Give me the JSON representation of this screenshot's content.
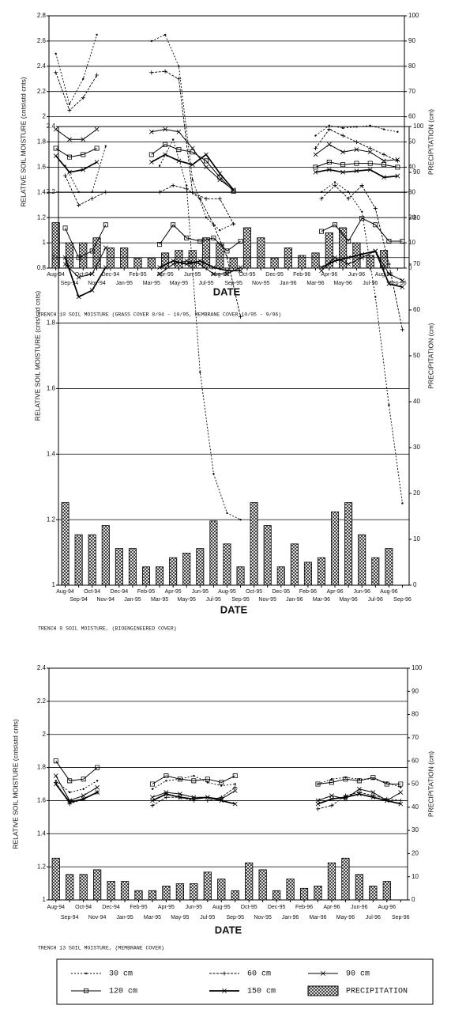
{
  "chart_data": [
    {
      "type": "bar_line",
      "caption": "TRENCH 10 SOIL MOISTURE (GRASS COVER 8/94 - 10/95, MEMBRANE COVER 10/95 - 9/96)",
      "x_label": "DATE",
      "y_label": "RELATIVE SOIL MOISTURE (cnts\\std cnts)",
      "y2_label": "PRECIPITATION (cm)",
      "categories": [
        "Aug-94",
        "Sep-94",
        "Oct-94",
        "Nov-94",
        "Dec-94",
        "Jan-95",
        "Feb-95",
        "Mar-95",
        "Apr-95",
        "May-95",
        "Jun-95",
        "Jul-95",
        "Aug-95",
        "Sep-95",
        "Oct-95",
        "Nov-95",
        "Dec-95",
        "Jan-96",
        "Feb-96",
        "Mar-96",
        "Apr-96",
        "May-96",
        "Jun-96",
        "Jul-96",
        "Aug-96",
        "Sep-96"
      ],
      "ylim": [
        0.8,
        2.8
      ],
      "yticks": [
        0.8,
        1,
        1.2,
        1.4,
        1.6,
        1.8,
        2,
        2.2,
        2.4,
        2.6,
        2.8
      ],
      "y2lim": [
        0,
        100
      ],
      "y2ticks": [
        0,
        10,
        20,
        30,
        40,
        50,
        60,
        70,
        80,
        90,
        100
      ],
      "grid": true,
      "series": [
        {
          "name": "30 cm",
          "color": "#000",
          "values": [
            2.5,
            2.1,
            2.3,
            2.65,
            null,
            null,
            null,
            2.6,
            2.65,
            2.4,
            1.5,
            1.2,
            1.1,
            1.15,
            null,
            null,
            null,
            null,
            null,
            1.85,
            1.93,
            1.91,
            1.92,
            1.93,
            1.9,
            1.88
          ]
        },
        {
          "name": "60 cm",
          "color": "#000",
          "values": [
            2.35,
            2.05,
            2.15,
            2.33,
            null,
            null,
            null,
            2.35,
            2.36,
            2.3,
            1.4,
            1.35,
            1.35,
            1.15,
            null,
            null,
            null,
            null,
            null,
            1.75,
            1.9,
            1.85,
            1.8,
            1.75,
            1.7,
            1.65
          ]
        },
        {
          "name": "90 cm",
          "color": "#000",
          "values": [
            1.9,
            1.82,
            1.82,
            1.9,
            null,
            null,
            null,
            1.88,
            1.9,
            1.88,
            1.75,
            1.6,
            1.5,
            1.42,
            null,
            null,
            null,
            null,
            null,
            1.7,
            1.78,
            1.72,
            1.74,
            1.72,
            1.65,
            1.66
          ]
        },
        {
          "name": "120 cm",
          "color": "#000",
          "values": [
            1.75,
            1.68,
            1.7,
            1.75,
            null,
            null,
            null,
            1.7,
            1.78,
            1.74,
            1.72,
            1.65,
            1.52,
            1.41,
            null,
            null,
            null,
            null,
            null,
            1.6,
            1.64,
            1.62,
            1.63,
            1.63,
            1.62,
            1.6
          ]
        },
        {
          "name": "150 cm",
          "color": "#000",
          "values": [
            1.69,
            1.56,
            1.58,
            1.64,
            null,
            null,
            null,
            1.64,
            1.7,
            1.65,
            1.62,
            1.7,
            1.55,
            1.42,
            null,
            null,
            null,
            null,
            null,
            1.56,
            1.58,
            1.56,
            1.57,
            1.58,
            1.52,
            1.53
          ]
        },
        {
          "name": "PRECIPITATION",
          "color": "#000",
          "axis": "y2",
          "values": [
            18,
            10,
            10,
            12,
            8,
            8,
            4,
            4,
            6,
            7,
            7,
            12,
            10,
            4,
            16,
            12,
            4,
            8,
            5,
            6,
            14,
            16,
            10,
            5,
            7,
            null
          ]
        }
      ]
    },
    {
      "type": "bar_line",
      "caption": "TRENCH 9 SOIL MOISTURE, (BIOENGINEERED COVER)",
      "x_label": "DATE",
      "y_label": "RELATIVE SOIL MOISTURE (cnts\\std cnts)",
      "y2_label": "PRECIPITATION (cm)",
      "categories": [
        "Aug-94",
        "Sep-94",
        "Oct-94",
        "Nov-94",
        "Dec-94",
        "Jan-95",
        "Feb-95",
        "Mar-95",
        "Apr-95",
        "May-95",
        "Jun-95",
        "Jul-95",
        "Aug-95",
        "Sep-95",
        "Oct-95",
        "Nov-95",
        "Dec-95",
        "Jan-96",
        "Feb-96",
        "Mar-96",
        "Apr-96",
        "May-96",
        "Jun-96",
        "Jul-96",
        "Aug-96",
        "Sep-96"
      ],
      "ylim": [
        1,
        2.4
      ],
      "yticks": [
        1,
        1.2,
        1.4,
        1.6,
        1.8,
        2,
        2.2,
        2.4
      ],
      "y2lim": [
        0,
        100
      ],
      "y2ticks": [
        0,
        10,
        20,
        30,
        40,
        50,
        60,
        70,
        80,
        90,
        100
      ],
      "grid": true,
      "series": [
        {
          "name": "30 cm",
          "color": "#000",
          "values": [
            2.28,
            2.2,
            2.2,
            2.34,
            null,
            null,
            null,
            2.28,
            2.36,
            2.22,
            1.65,
            1.34,
            1.22,
            1.2,
            null,
            null,
            null,
            null,
            null,
            2.2,
            2.23,
            2.2,
            2.14,
            1.88,
            1.55,
            1.25
          ]
        },
        {
          "name": "60 cm",
          "color": "#000",
          "values": [
            2.25,
            2.16,
            2.18,
            2.2,
            null,
            null,
            null,
            2.2,
            2.22,
            2.21,
            2.18,
            2.1,
            2.0,
            1.82,
            null,
            null,
            null,
            null,
            null,
            2.18,
            2.22,
            2.18,
            2.22,
            2.15,
            1.98,
            1.78
          ]
        },
        {
          "name": "90 cm",
          "color": "#000",
          "values": [
            1.98,
            1.94,
            1.95,
            2.03,
            null,
            null,
            null,
            1.95,
            1.98,
            1.99,
            1.98,
            1.95,
            1.95,
            1.97,
            null,
            null,
            null,
            null,
            null,
            1.96,
            2.0,
            1.98,
            2.0,
            2.02,
            1.95,
            1.93
          ]
        },
        {
          "name": "120 cm",
          "color": "#000",
          "values": [
            2.09,
            2.0,
            2.02,
            2.1,
            null,
            null,
            null,
            2.04,
            2.1,
            2.06,
            2.05,
            2.06,
            2.02,
            2.05,
            null,
            null,
            null,
            null,
            null,
            2.08,
            2.1,
            2.05,
            2.12,
            2.1,
            2.05,
            2.05
          ]
        },
        {
          "name": "150 cm",
          "color": "#000",
          "values": [
            2.0,
            1.88,
            1.9,
            1.97,
            null,
            null,
            null,
            1.97,
            1.99,
            1.98,
            1.99,
            1.97,
            1.96,
            1.96,
            null,
            null,
            null,
            null,
            null,
            1.97,
            1.99,
            2.0,
            2.01,
            2.02,
            1.92,
            1.91
          ]
        },
        {
          "name": "PRECIPITATION",
          "color": "#000",
          "axis": "y2",
          "values": [
            18,
            11,
            11,
            13,
            8,
            8,
            4,
            4,
            6,
            7,
            8,
            14,
            9,
            4,
            18,
            13,
            4,
            9,
            5,
            6,
            16,
            18,
            11,
            6,
            8,
            null
          ]
        }
      ]
    },
    {
      "type": "bar_line",
      "caption": "TRENCH 13 SOIL MOISTURE, (MEMBRANE COVER)",
      "x_label": "DATE",
      "y_label": "RELATIVE SOIL MOISTURE (cnts\\std cnts)",
      "y2_label": "PRECIPITATION (cm)",
      "categories": [
        "Aug-94",
        "Sep-94",
        "Oct-94",
        "Nov-94",
        "Dec-94",
        "Jan-95",
        "Feb-95",
        "Mar-95",
        "Apr-95",
        "May-95",
        "Jun-95",
        "Jul-95",
        "Aug-95",
        "Sep-95",
        "Oct-95",
        "Nov-95",
        "Dec-95",
        "Jan-96",
        "Feb-96",
        "Mar-96",
        "Apr-96",
        "May-96",
        "Jun-96",
        "Jul-96",
        "Aug-96",
        "Sep-96"
      ],
      "ylim": [
        1,
        2.4
      ],
      "yticks": [
        1,
        1.2,
        1.4,
        1.6,
        1.8,
        2,
        2.2,
        2.4
      ],
      "y2lim": [
        0,
        100
      ],
      "y2ticks": [
        0,
        10,
        20,
        30,
        40,
        50,
        60,
        70,
        80,
        90,
        100
      ],
      "grid": true,
      "series": [
        {
          "name": "30 cm",
          "color": "#000",
          "values": [
            1.72,
            1.65,
            1.67,
            1.72,
            null,
            null,
            null,
            1.67,
            1.72,
            1.73,
            1.75,
            1.71,
            1.69,
            1.7,
            null,
            null,
            null,
            null,
            null,
            1.7,
            1.73,
            1.74,
            1.73,
            1.73,
            1.71,
            1.68
          ]
        },
        {
          "name": "60 cm",
          "color": "#000",
          "values": [
            1.71,
            1.58,
            1.61,
            1.65,
            null,
            null,
            null,
            1.57,
            1.62,
            1.62,
            1.6,
            1.6,
            1.62,
            1.68,
            null,
            null,
            null,
            null,
            null,
            1.55,
            1.57,
            1.63,
            1.65,
            1.63,
            1.61,
            1.6
          ]
        },
        {
          "name": "90 cm",
          "color": "#000",
          "values": [
            1.75,
            1.6,
            1.63,
            1.68,
            null,
            null,
            null,
            1.62,
            1.65,
            1.64,
            1.62,
            1.62,
            1.61,
            1.66,
            null,
            null,
            null,
            null,
            null,
            1.6,
            1.63,
            1.61,
            1.67,
            1.65,
            1.6,
            1.65
          ]
        },
        {
          "name": "120 cm",
          "color": "#000",
          "values": [
            1.84,
            1.72,
            1.73,
            1.8,
            null,
            null,
            null,
            1.7,
            1.75,
            1.73,
            1.72,
            1.73,
            1.71,
            1.75,
            null,
            null,
            null,
            null,
            null,
            1.7,
            1.71,
            1.73,
            1.72,
            1.74,
            1.7,
            1.7
          ]
        },
        {
          "name": "150 cm",
          "color": "#000",
          "values": [
            1.7,
            1.59,
            1.61,
            1.65,
            null,
            null,
            null,
            1.6,
            1.64,
            1.62,
            1.61,
            1.62,
            1.6,
            1.58,
            null,
            null,
            null,
            null,
            null,
            1.58,
            1.61,
            1.62,
            1.64,
            1.62,
            1.6,
            1.58
          ]
        },
        {
          "name": "PRECIPITATION",
          "color": "#000",
          "axis": "y2",
          "values": [
            18,
            11,
            11,
            13,
            8,
            8,
            4,
            4,
            6,
            7,
            7,
            12,
            9,
            4,
            16,
            13,
            4,
            9,
            5,
            6,
            16,
            18,
            11,
            6,
            8,
            null
          ]
        }
      ]
    }
  ]
}
